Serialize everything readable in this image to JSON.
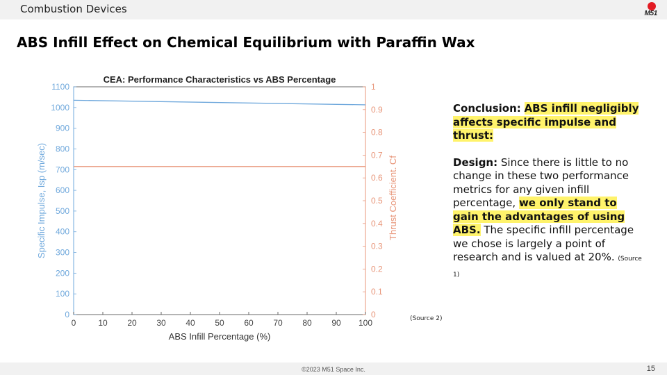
{
  "header": {
    "section": "Combustion Devices",
    "logo_text": "M51"
  },
  "title": "ABS Infill Effect on Chemical Equilibrium with Paraffin Wax",
  "chart_data": {
    "type": "line",
    "title": "CEA: Performance Characteristics vs ABS Percentage",
    "xlabel": "ABS Infill Percentage (%)",
    "ylabel_left": "Specific Impulse, Isp (m/sec)",
    "ylabel_right": "Thrust Coefficient, Cf",
    "xlim": [
      0,
      100
    ],
    "ylim_left": [
      0,
      1100
    ],
    "ylim_right": [
      0,
      1
    ],
    "x_ticks": [
      "0",
      "10",
      "20",
      "30",
      "40",
      "50",
      "60",
      "70",
      "80",
      "90",
      "100"
    ],
    "y_left_ticks": [
      "0",
      "100",
      "200",
      "300",
      "400",
      "500",
      "600",
      "700",
      "800",
      "900",
      "1000",
      "1100"
    ],
    "y_right_ticks": [
      "0",
      "0.1",
      "0.2",
      "0.3",
      "0.4",
      "0.5",
      "0.6",
      "0.7",
      "0.8",
      "0.9",
      "1"
    ],
    "grid": false,
    "series": [
      {
        "axis": "left",
        "color": "#6fa8dc",
        "x": [
          0,
          100
        ],
        "y": [
          1035,
          1013
        ]
      },
      {
        "axis": "right",
        "color": "#e8967a",
        "x": [
          0,
          100
        ],
        "y": [
          0.65,
          0.65
        ]
      }
    ],
    "left_color": "#6fa8dc",
    "right_color": "#e8967a"
  },
  "conclusion": {
    "label": "Conclusion:",
    "highlight": "ABS infill negligibly affects specific impulse and thrust:"
  },
  "design": {
    "label": "Design:",
    "text1": "Since there is little to no change in these two performance metrics for any given infill percentage,",
    "highlight": "we only stand to gain the advantages of using ABS.",
    "text2": "The specific infill percentage we chose is largely a point of research and is valued at 20%.",
    "source": "(Source 1)"
  },
  "source2": "(Source 2)",
  "footer": {
    "copyright": "©2023 M51 Space Inc.",
    "page": "15"
  }
}
